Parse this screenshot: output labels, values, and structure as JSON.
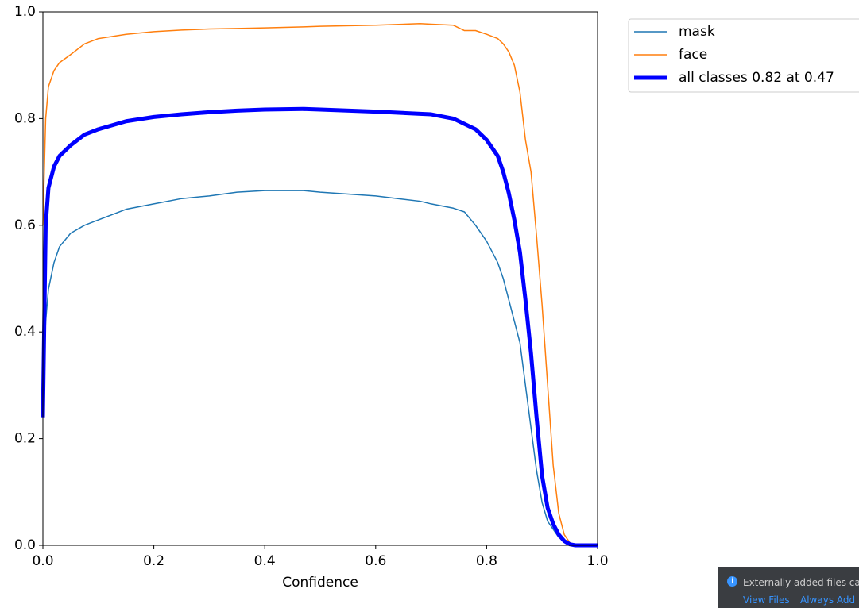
{
  "chart_data": {
    "type": "line",
    "xlabel": "Confidence",
    "x": [
      0,
      0.005,
      0.01,
      0.02,
      0.03,
      0.05,
      0.075,
      0.1,
      0.15,
      0.2,
      0.25,
      0.3,
      0.35,
      0.4,
      0.47,
      0.5,
      0.6,
      0.68,
      0.7,
      0.74,
      0.76,
      0.78,
      0.8,
      0.82,
      0.83,
      0.84,
      0.85,
      0.86,
      0.87,
      0.88,
      0.89,
      0.9,
      0.91,
      0.92,
      0.93,
      0.94,
      0.95,
      0.96,
      1.0
    ],
    "series": [
      {
        "name": "mask",
        "color": "#1f77b4",
        "width": 1.5,
        "values": [
          0.3,
          0.42,
          0.48,
          0.53,
          0.56,
          0.585,
          0.6,
          0.61,
          0.63,
          0.64,
          0.65,
          0.655,
          0.662,
          0.665,
          0.665,
          0.662,
          0.655,
          0.645,
          0.64,
          0.632,
          0.625,
          0.6,
          0.57,
          0.53,
          0.5,
          0.46,
          0.42,
          0.38,
          0.3,
          0.22,
          0.14,
          0.08,
          0.045,
          0.03,
          0.015,
          0.008,
          0.003,
          0,
          0
        ]
      },
      {
        "name": "face",
        "color": "#ff7f0e",
        "width": 1.5,
        "values": [
          0.6,
          0.8,
          0.86,
          0.89,
          0.905,
          0.92,
          0.94,
          0.95,
          0.958,
          0.963,
          0.966,
          0.968,
          0.969,
          0.97,
          0.972,
          0.973,
          0.975,
          0.978,
          0.977,
          0.975,
          0.965,
          0.965,
          0.958,
          0.95,
          0.94,
          0.925,
          0.9,
          0.85,
          0.76,
          0.7,
          0.58,
          0.45,
          0.3,
          0.15,
          0.06,
          0.02,
          0.005,
          0,
          0
        ]
      },
      {
        "name": "all classes 0.82 at 0.47",
        "color": "#0000ff",
        "width": 5,
        "values": [
          0.24,
          0.6,
          0.67,
          0.71,
          0.73,
          0.75,
          0.77,
          0.78,
          0.795,
          0.803,
          0.808,
          0.812,
          0.815,
          0.817,
          0.818,
          0.817,
          0.813,
          0.809,
          0.808,
          0.8,
          0.79,
          0.78,
          0.76,
          0.73,
          0.7,
          0.66,
          0.61,
          0.55,
          0.46,
          0.36,
          0.24,
          0.13,
          0.07,
          0.04,
          0.02,
          0.008,
          0.002,
          0,
          0
        ]
      }
    ],
    "xlim": [
      0,
      1
    ],
    "ylim": [
      0,
      1
    ],
    "xticks": [
      {
        "value": 0,
        "label": "0.0"
      },
      0.2,
      0.4,
      0.6,
      0.8,
      {
        "value": 1,
        "label": "1.0"
      }
    ],
    "yticks": [
      {
        "value": 0,
        "label": "0.0"
      },
      0.2,
      0.4,
      0.6,
      0.8,
      {
        "value": 1,
        "label": "1.0"
      }
    ],
    "legend": "outside-upper-right"
  },
  "notification": {
    "message": "Externally added files can",
    "actions": [
      "View Files",
      "Always Add"
    ]
  }
}
